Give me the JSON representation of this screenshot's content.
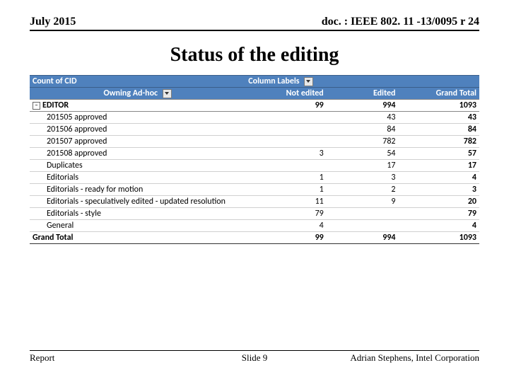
{
  "header": {
    "left": "July 2015",
    "right": "doc. : IEEE 802. 11 -13/0095 r 24"
  },
  "title": "Status of the editing",
  "pivot": {
    "topLeft": "Count of CID",
    "colLabels": "Column Labels",
    "owning": "Owning Ad-hoc",
    "cols": {
      "c1": "Not edited",
      "c2": "Edited",
      "c3": "Grand Total"
    },
    "editor": "EDITOR",
    "editorVals": {
      "ne": "99",
      "ed": "994",
      "gt": "1093"
    },
    "rows": [
      {
        "label": "201505 approved",
        "ne": "",
        "ed": "43",
        "gt": "43"
      },
      {
        "label": "201506 approved",
        "ne": "",
        "ed": "84",
        "gt": "84"
      },
      {
        "label": "201507 approved",
        "ne": "",
        "ed": "782",
        "gt": "782"
      },
      {
        "label": "201508 approved",
        "ne": "3",
        "ed": "54",
        "gt": "57"
      },
      {
        "label": "Duplicates",
        "ne": "",
        "ed": "17",
        "gt": "17"
      },
      {
        "label": "Editorials",
        "ne": "1",
        "ed": "3",
        "gt": "4"
      },
      {
        "label": "Editorials - ready for motion",
        "ne": "1",
        "ed": "2",
        "gt": "3"
      },
      {
        "label": "Editorials - speculatively edited - updated resolution",
        "ne": "11",
        "ed": "9",
        "gt": "20"
      },
      {
        "label": "Editorials - style",
        "ne": "79",
        "ed": "",
        "gt": "79"
      },
      {
        "label": "General",
        "ne": "4",
        "ed": "",
        "gt": "4"
      }
    ],
    "grand": {
      "label": "Grand Total",
      "ne": "99",
      "ed": "994",
      "gt": "1093"
    }
  },
  "footer": {
    "left": "Report",
    "center": "Slide 9",
    "right": "Adrian Stephens, Intel Corporation"
  }
}
